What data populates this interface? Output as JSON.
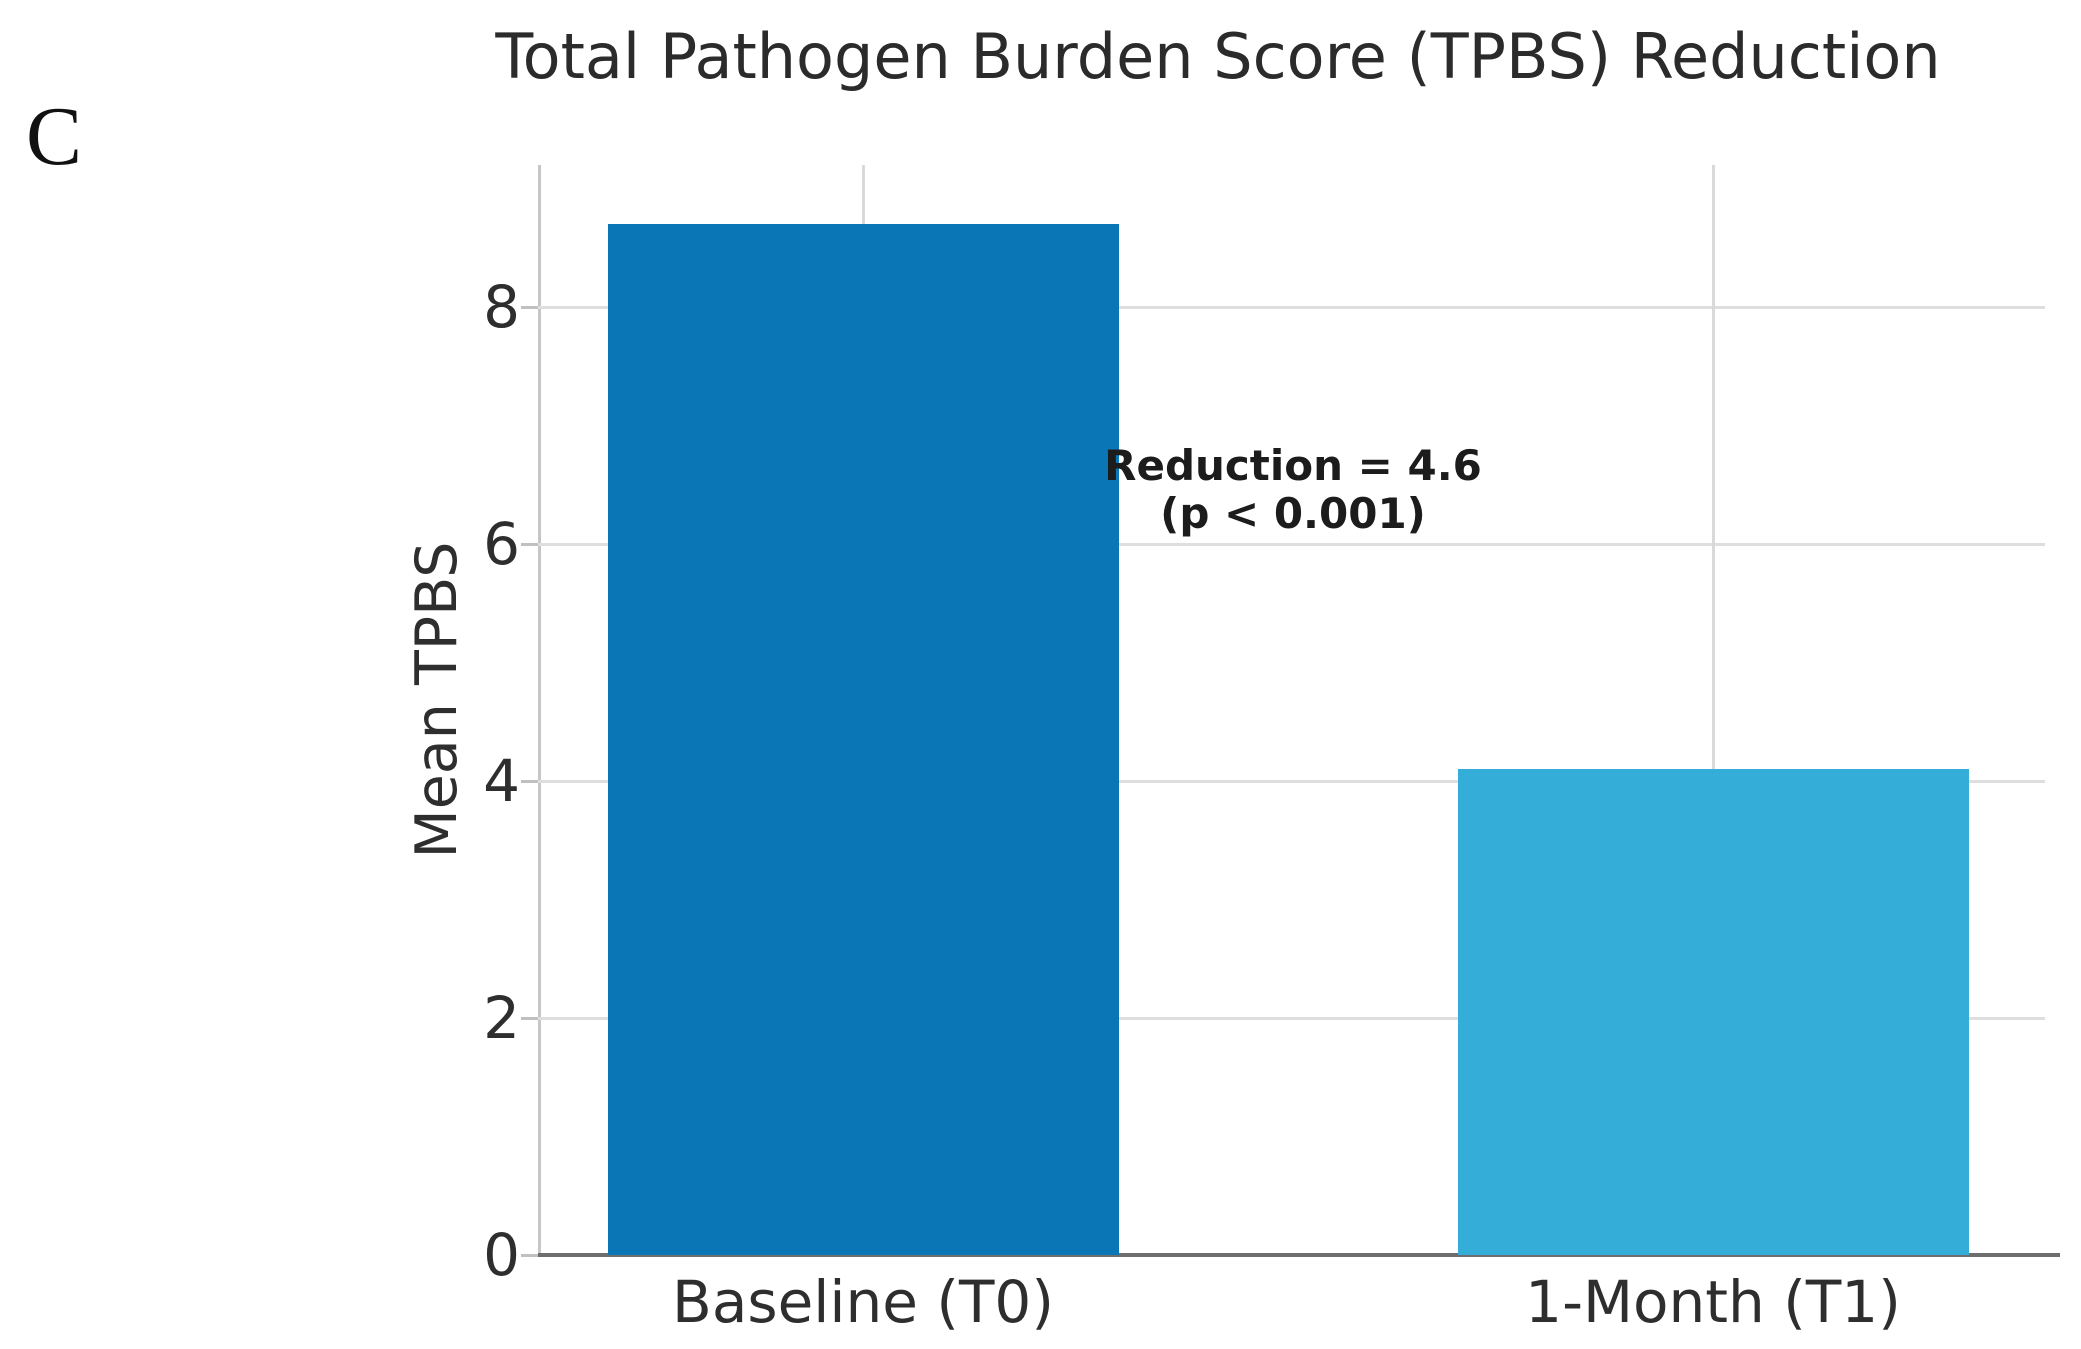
{
  "page": {
    "background": "#ffffff"
  },
  "panel_label": "C",
  "chart_data": {
    "type": "bar",
    "title": "Total Pathogen Burden Score (TPBS) Reduction",
    "categories": [
      "Baseline (T0)",
      "1-Month (T1)"
    ],
    "values": [
      8.7,
      4.1
    ],
    "bar_colors": [
      "#0b76b6",
      "#35add9"
    ],
    "xlabel": "",
    "ylabel": "Mean TPBS",
    "yticks": [
      0,
      2,
      4,
      6,
      8
    ],
    "ylim": [
      0,
      9.2
    ],
    "grid": true,
    "grid_axes": "both",
    "legend_position": "none",
    "annotation": {
      "line1": "Reduction = 4.6",
      "line2": "(p < 0.001)"
    }
  }
}
